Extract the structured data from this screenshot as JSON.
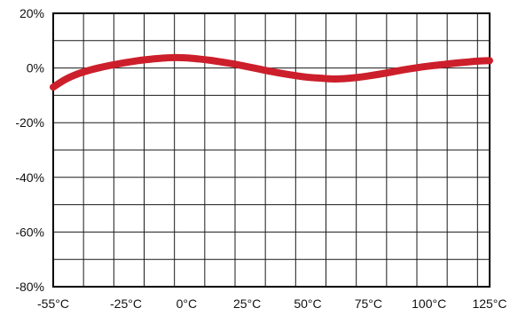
{
  "chart_data": {
    "type": "line",
    "title": "",
    "xlabel": "",
    "ylabel": "",
    "xlim": [
      -55,
      125
    ],
    "ylim": [
      -80,
      20
    ],
    "grid": true,
    "x_ticks": [
      {
        "value": -55,
        "label": "-55°C"
      },
      {
        "value": -25,
        "label": "-25°C"
      },
      {
        "value": 0,
        "label": "0°C"
      },
      {
        "value": 25,
        "label": "25°C"
      },
      {
        "value": 50,
        "label": "50°C"
      },
      {
        "value": 75,
        "label": "75°C"
      },
      {
        "value": 100,
        "label": "100°C"
      },
      {
        "value": 125,
        "label": "125°C"
      }
    ],
    "y_ticks": [
      {
        "value": 20,
        "label": "20%"
      },
      {
        "value": 0,
        "label": "0%"
      },
      {
        "value": -20,
        "label": "-20%"
      },
      {
        "value": -40,
        "label": "-40%"
      },
      {
        "value": -60,
        "label": "-60%"
      },
      {
        "value": -80,
        "label": "-80%"
      }
    ],
    "series": [
      {
        "color": "#cc1f2b",
        "x": [
          -55,
          -50,
          -45,
          -40,
          -35,
          -30,
          -25,
          -20,
          -15,
          -10,
          -5,
          0,
          5,
          10,
          15,
          20,
          25,
          30,
          35,
          40,
          45,
          50,
          55,
          60,
          65,
          70,
          75,
          80,
          85,
          90,
          95,
          100,
          105,
          110,
          115,
          120,
          125
        ],
        "y": [
          -7.0,
          -4.2,
          -2.2,
          -0.8,
          0.3,
          1.2,
          2.0,
          2.7,
          3.2,
          3.6,
          3.8,
          3.7,
          3.3,
          2.8,
          2.1,
          1.4,
          0.5,
          -0.4,
          -1.3,
          -2.1,
          -2.8,
          -3.4,
          -3.7,
          -4.0,
          -3.9,
          -3.5,
          -2.9,
          -2.2,
          -1.4,
          -0.6,
          0.1,
          0.7,
          1.2,
          1.7,
          2.1,
          2.5,
          2.7
        ]
      }
    ]
  }
}
